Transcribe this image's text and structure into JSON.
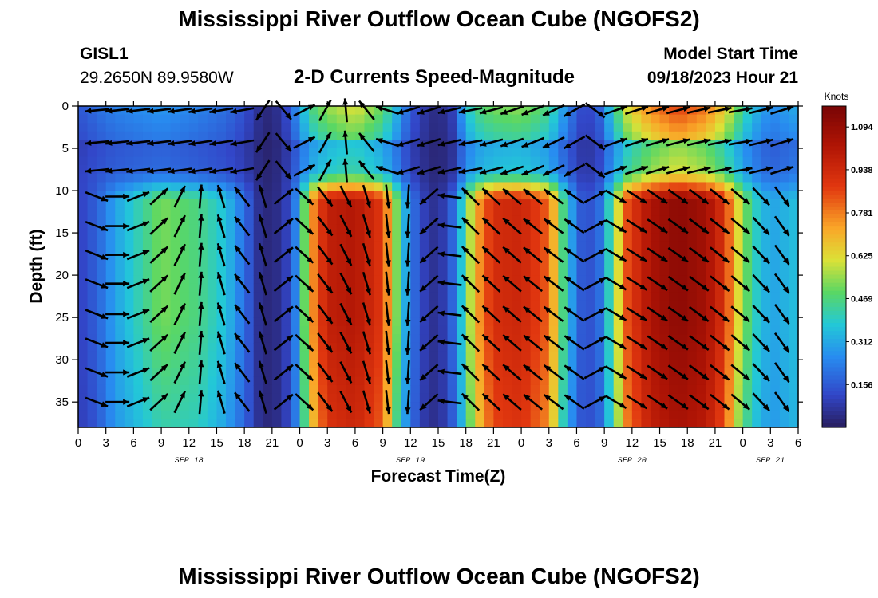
{
  "header": {
    "main_title": "Mississippi River Outflow Ocean Cube (NGOFS2)",
    "station_id": "GISL1",
    "coordinates": "29.2650N  89.9580W",
    "subtitle": "2-D Currents Speed-Magnitude",
    "start_label": "Model Start Time",
    "start_value": "09/18/2023 Hour 21"
  },
  "footer": {
    "title": "Mississippi River Outflow Ocean Cube (NGOFS2)"
  },
  "chart_data": {
    "type": "heatmap",
    "title": "2-D Currents Speed-Magnitude",
    "xlabel": "Forecast Time(Z)",
    "ylabel": "Depth (ft)",
    "x_ticks": [
      "0",
      "3",
      "6",
      "9",
      "12",
      "15",
      "18",
      "21",
      "0",
      "3",
      "6",
      "9",
      "12",
      "15",
      "18",
      "21",
      "0",
      "3",
      "6",
      "9",
      "12",
      "15",
      "18",
      "21",
      "0",
      "3",
      "6"
    ],
    "x_range_hours": [
      0,
      78
    ],
    "date_labels": [
      {
        "label": "SEP 18",
        "hour": 12
      },
      {
        "label": "SEP 19",
        "hour": 36
      },
      {
        "label": "SEP 20",
        "hour": 60
      },
      {
        "label": "SEP 21",
        "hour": 75
      }
    ],
    "y_ticks": [
      0,
      5,
      10,
      15,
      20,
      25,
      30,
      35
    ],
    "ylim": [
      0,
      38
    ],
    "y_inverted": true,
    "colorbar": {
      "title": "Knots",
      "ticks": [
        0.156,
        0.312,
        0.469,
        0.625,
        0.781,
        0.938,
        1.094
      ],
      "range": [
        0,
        1.17
      ]
    },
    "arrow_depths": [
      0.5,
      4.3,
      7.6,
      10.7,
      14.2,
      17.6,
      21,
      24.6,
      28,
      31.5,
      35
    ],
    "speed_profiles": [
      {
        "hour": 0,
        "surface": 0.15,
        "mid": 0.1,
        "deep": 0.09
      },
      {
        "hour": 2,
        "surface": 0.2,
        "mid": 0.17,
        "deep": 0.15
      },
      {
        "hour": 4,
        "surface": 0.24,
        "mid": 0.3,
        "deep": 0.28
      },
      {
        "hour": 9,
        "surface": 0.28,
        "mid": 0.52,
        "deep": 0.42
      },
      {
        "hour": 13,
        "surface": 0.24,
        "mid": 0.46,
        "deep": 0.4
      },
      {
        "hour": 16,
        "surface": 0.2,
        "mid": 0.36,
        "deep": 0.3
      },
      {
        "hour": 18,
        "surface": 0.14,
        "mid": 0.2,
        "deep": 0.18
      },
      {
        "hour": 19.5,
        "surface": 0.06,
        "mid": 0.06,
        "deep": 0.06
      },
      {
        "hour": 21,
        "surface": 0.02,
        "mid": 0.02,
        "deep": 0.02
      },
      {
        "hour": 22.5,
        "surface": 0.12,
        "mid": 0.1,
        "deep": 0.1
      },
      {
        "hour": 24,
        "surface": 0.3,
        "mid": 0.3,
        "deep": 0.28
      },
      {
        "hour": 25,
        "surface": 0.45,
        "mid": 0.7,
        "deep": 0.62
      },
      {
        "hour": 27,
        "surface": 0.55,
        "mid": 0.98,
        "deep": 0.9
      },
      {
        "hour": 30,
        "surface": 0.62,
        "mid": 1.02,
        "deep": 0.95
      },
      {
        "hour": 33,
        "surface": 0.5,
        "mid": 0.88,
        "deep": 0.82
      },
      {
        "hour": 34.5,
        "surface": 0.34,
        "mid": 0.52,
        "deep": 0.45
      },
      {
        "hour": 36,
        "surface": 0.16,
        "mid": 0.22,
        "deep": 0.2
      },
      {
        "hour": 37.5,
        "surface": 0.08,
        "mid": 0.1,
        "deep": 0.08
      },
      {
        "hour": 39,
        "surface": 0.03,
        "mid": 0.04,
        "deep": 0.04
      },
      {
        "hour": 40.5,
        "surface": 0.1,
        "mid": 0.18,
        "deep": 0.16
      },
      {
        "hour": 42,
        "surface": 0.36,
        "mid": 0.46,
        "deep": 0.4
      },
      {
        "hour": 43,
        "surface": 0.46,
        "mid": 0.7,
        "deep": 0.62
      },
      {
        "hour": 45,
        "surface": 0.52,
        "mid": 0.92,
        "deep": 0.86
      },
      {
        "hour": 48,
        "surface": 0.54,
        "mid": 0.95,
        "deep": 0.9
      },
      {
        "hour": 51,
        "surface": 0.46,
        "mid": 0.82,
        "deep": 0.76
      },
      {
        "hour": 52.5,
        "surface": 0.3,
        "mid": 0.46,
        "deep": 0.4
      },
      {
        "hour": 54,
        "surface": 0.16,
        "mid": 0.2,
        "deep": 0.18
      },
      {
        "hour": 55,
        "surface": 0.1,
        "mid": 0.12,
        "deep": 0.12
      },
      {
        "hour": 56.5,
        "surface": 0.18,
        "mid": 0.2,
        "deep": 0.18
      },
      {
        "hour": 58,
        "surface": 0.42,
        "mid": 0.5,
        "deep": 0.45
      },
      {
        "hour": 59.5,
        "surface": 0.62,
        "mid": 0.85,
        "deep": 0.78
      },
      {
        "hour": 62,
        "surface": 0.78,
        "mid": 1.04,
        "deep": 0.98
      },
      {
        "hour": 65,
        "surface": 0.88,
        "mid": 1.12,
        "deep": 1.05
      },
      {
        "hour": 68,
        "surface": 0.8,
        "mid": 1.06,
        "deep": 1.0
      },
      {
        "hour": 70,
        "surface": 0.66,
        "mid": 0.9,
        "deep": 0.84
      },
      {
        "hour": 71.5,
        "surface": 0.5,
        "mid": 0.62,
        "deep": 0.55
      },
      {
        "hour": 73,
        "surface": 0.36,
        "mid": 0.42,
        "deep": 0.38
      },
      {
        "hour": 75,
        "surface": 0.26,
        "mid": 0.3,
        "deep": 0.28
      },
      {
        "hour": 78,
        "surface": 0.32,
        "mid": 0.36,
        "deep": 0.34
      }
    ],
    "direction_profiles": [
      {
        "hour": 0,
        "upper_deg": 185,
        "lower_deg": 320
      },
      {
        "hour": 18,
        "upper_deg": 190,
        "lower_deg": 130
      },
      {
        "hour": 21,
        "upper_deg": 260,
        "lower_deg": 95
      },
      {
        "hour": 24,
        "upper_deg": 20,
        "lower_deg": 320
      },
      {
        "hour": 36,
        "upper_deg": 200,
        "lower_deg": 265
      },
      {
        "hour": 42,
        "upper_deg": 190,
        "lower_deg": 135
      },
      {
        "hour": 54,
        "upper_deg": 210,
        "lower_deg": 145
      },
      {
        "hour": 57,
        "upper_deg": 20,
        "lower_deg": 330
      },
      {
        "hour": 72,
        "upper_deg": 10,
        "lower_deg": 320
      },
      {
        "hour": 78,
        "upper_deg": 20,
        "lower_deg": 300
      }
    ]
  }
}
